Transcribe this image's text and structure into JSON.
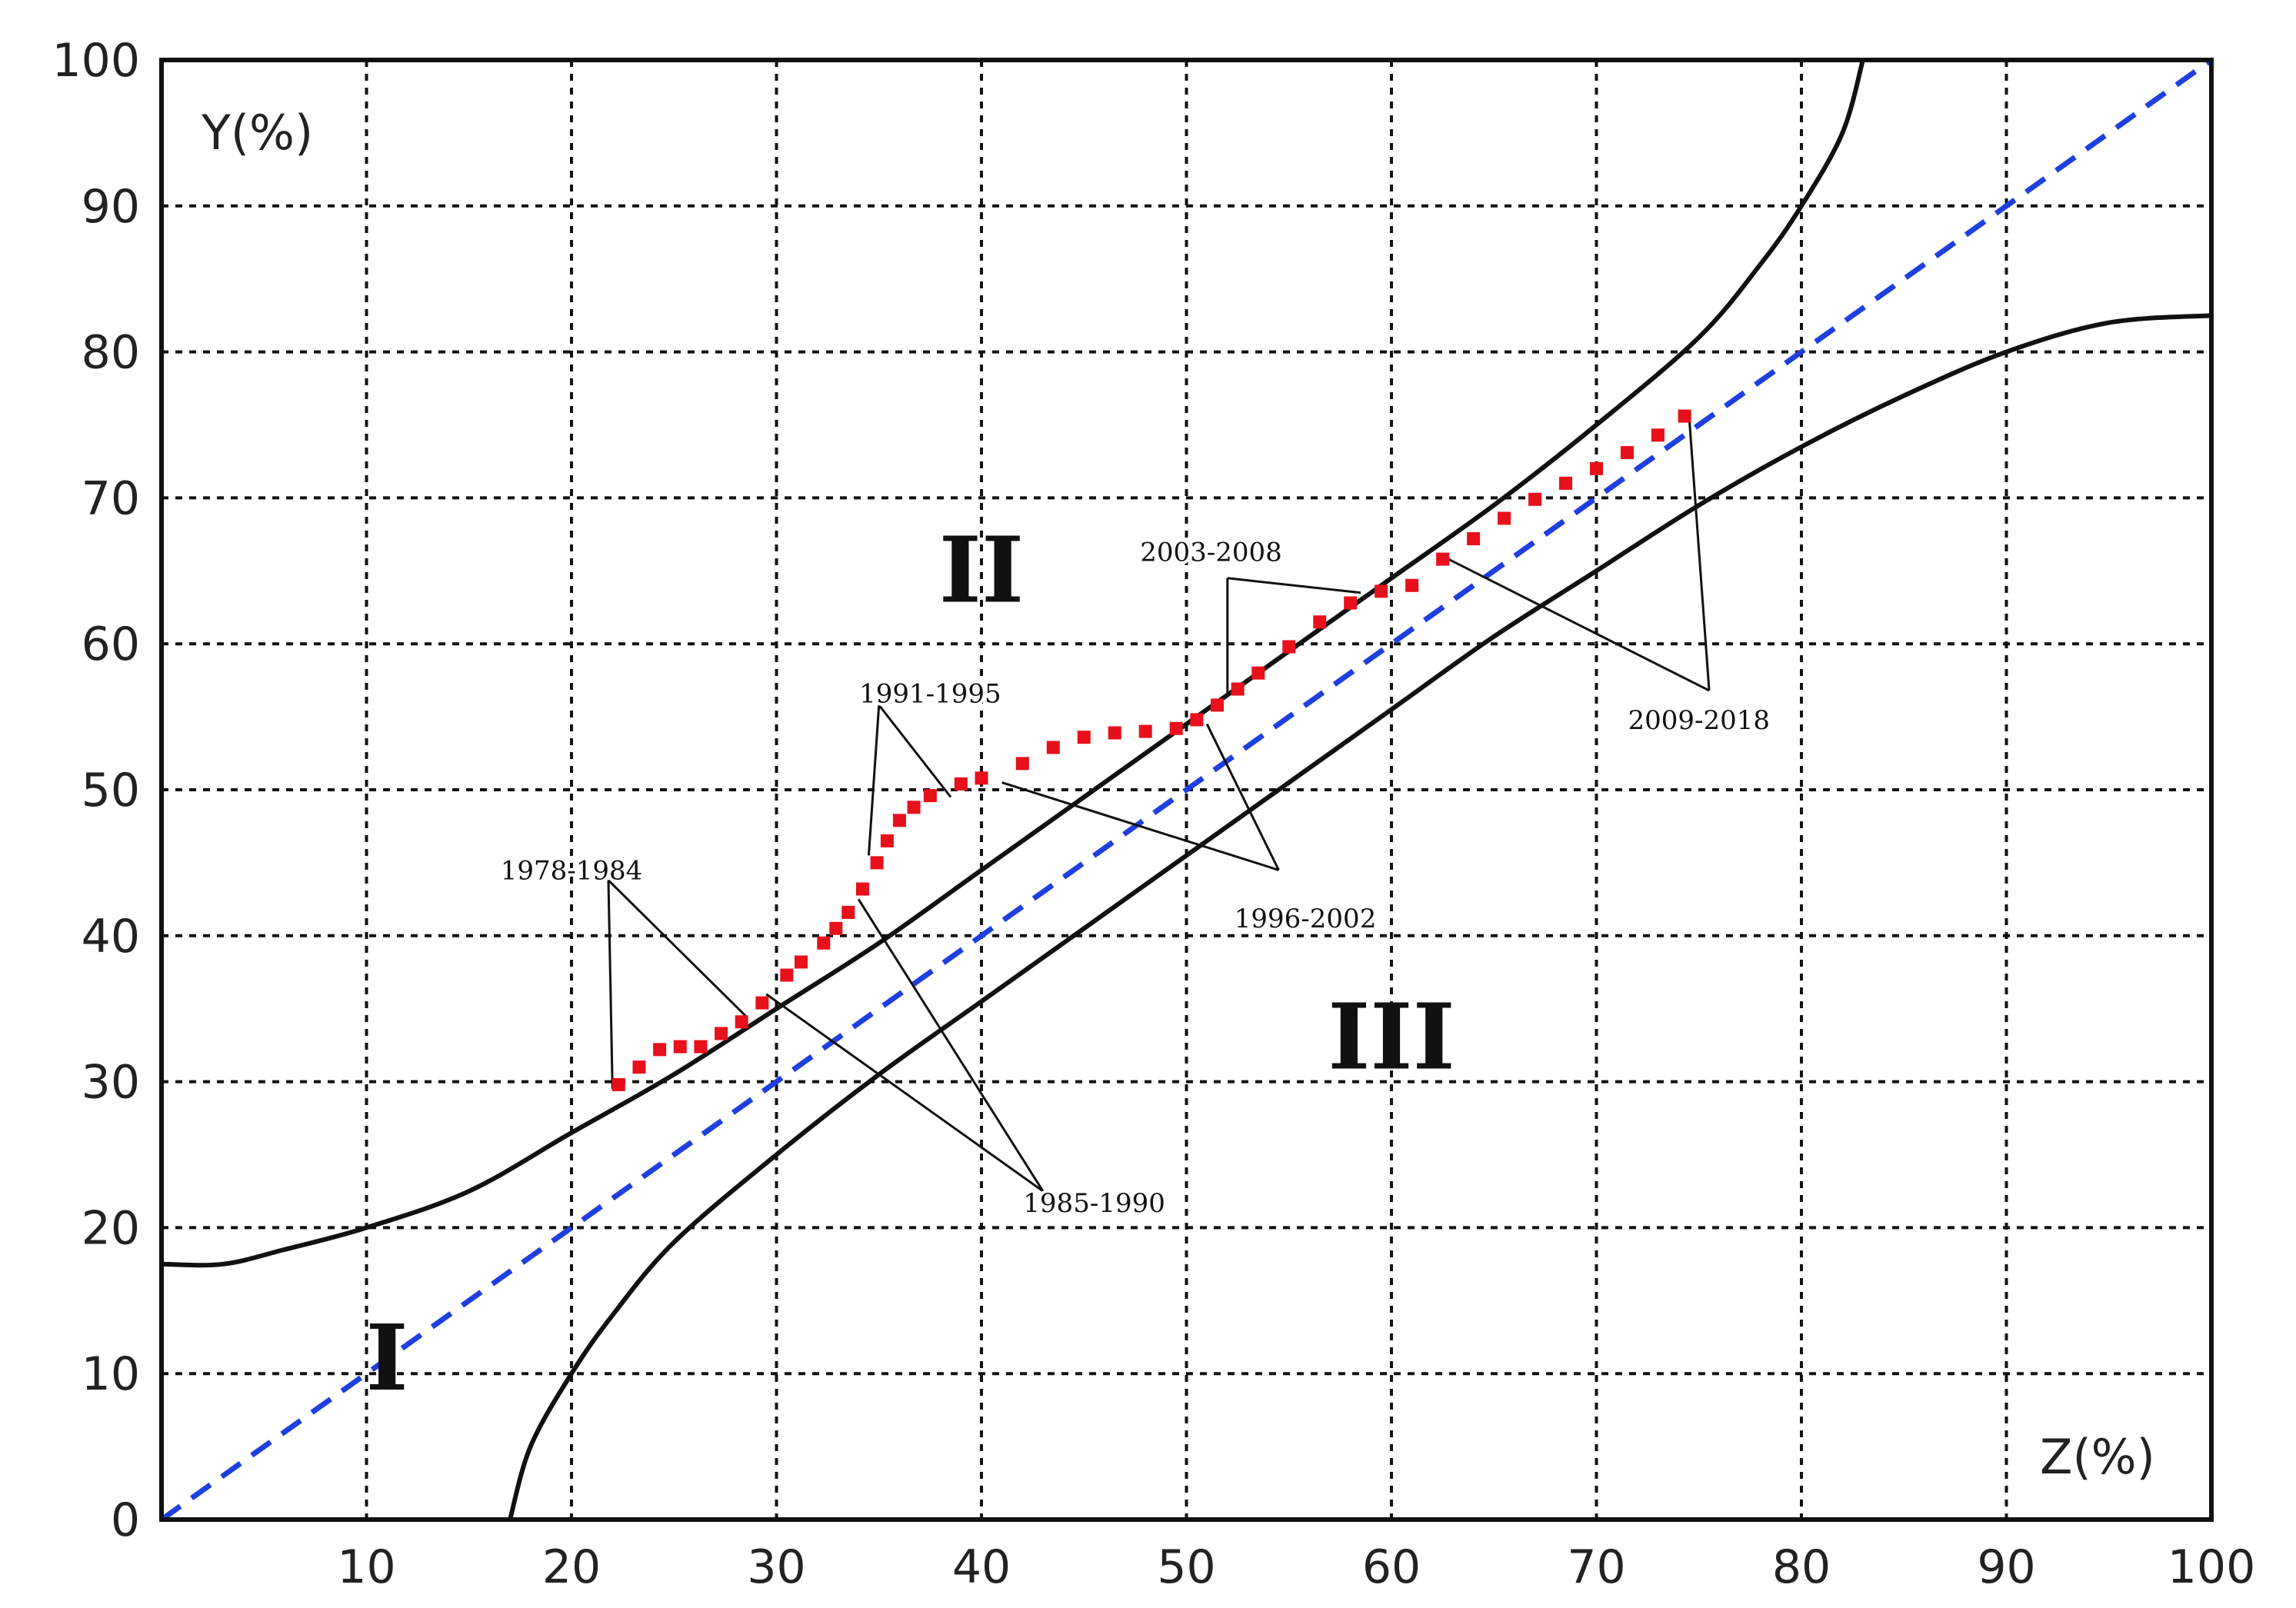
{
  "chart_data": {
    "type": "scatter",
    "xlabel": "Z(%)",
    "ylabel": "Y(%)",
    "xlim": [
      0,
      100
    ],
    "ylim": [
      0,
      100
    ],
    "xticks": [
      "0",
      "10",
      "20",
      "30",
      "40",
      "50",
      "60",
      "70",
      "80",
      "90",
      "100"
    ],
    "yticks": [
      "0",
      "10",
      "20",
      "30",
      "40",
      "50",
      "60",
      "70",
      "80",
      "90",
      "100"
    ],
    "grid": true,
    "diagonal_color": "#1f3fe0",
    "point_color": "#e8101a",
    "regions": [
      {
        "label": "I",
        "x": 11,
        "y": 11
      },
      {
        "label": "II",
        "x": 40,
        "y": 65
      },
      {
        "label": "III",
        "x": 60,
        "y": 33
      }
    ],
    "upper_boundary": [
      [
        0,
        17.5
      ],
      [
        3,
        17.5
      ],
      [
        6,
        18.5
      ],
      [
        10,
        20
      ],
      [
        15,
        22.5
      ],
      [
        20,
        26.5
      ],
      [
        25,
        30.5
      ],
      [
        30,
        35
      ],
      [
        35,
        39.5
      ],
      [
        40,
        44.5
      ],
      [
        45,
        49.5
      ],
      [
        50,
        54.5
      ],
      [
        55,
        59.5
      ],
      [
        60,
        64.5
      ],
      [
        65,
        69.5
      ],
      [
        70,
        75
      ],
      [
        75,
        81
      ],
      [
        78,
        86
      ],
      [
        80,
        90
      ],
      [
        82,
        95
      ],
      [
        83,
        100
      ]
    ],
    "lower_boundary": [
      [
        17,
        0
      ],
      [
        18,
        5
      ],
      [
        20,
        10
      ],
      [
        22,
        14
      ],
      [
        25,
        19
      ],
      [
        30,
        25
      ],
      [
        35,
        30.5
      ],
      [
        40,
        35.5
      ],
      [
        45,
        40.5
      ],
      [
        50,
        45.5
      ],
      [
        55,
        50.5
      ],
      [
        60,
        55.5
      ],
      [
        65,
        60.5
      ],
      [
        70,
        65
      ],
      [
        75,
        69.5
      ],
      [
        80,
        73.5
      ],
      [
        85,
        77
      ],
      [
        90,
        80
      ],
      [
        95,
        82
      ],
      [
        100,
        82.5
      ]
    ],
    "series": [
      {
        "values": [
          [
            22.3,
            29.8
          ],
          [
            23.3,
            31.0
          ],
          [
            24.3,
            32.2
          ],
          [
            25.3,
            32.4
          ],
          [
            26.3,
            32.4
          ],
          [
            27.3,
            33.3
          ],
          [
            28.3,
            34.1
          ],
          [
            29.3,
            35.4
          ],
          [
            30.5,
            37.3
          ],
          [
            31.2,
            38.2
          ],
          [
            32.3,
            39.5
          ],
          [
            32.9,
            40.5
          ],
          [
            33.5,
            41.6
          ],
          [
            34.2,
            43.2
          ],
          [
            34.9,
            45.0
          ],
          [
            35.4,
            46.5
          ],
          [
            36.0,
            47.9
          ],
          [
            36.7,
            48.8
          ],
          [
            37.5,
            49.6
          ],
          [
            39.0,
            50.4
          ],
          [
            40.0,
            50.8
          ],
          [
            42.0,
            51.8
          ],
          [
            43.5,
            52.9
          ],
          [
            45.0,
            53.6
          ],
          [
            46.5,
            53.9
          ],
          [
            48.0,
            54.0
          ],
          [
            49.5,
            54.2
          ],
          [
            50.5,
            54.8
          ],
          [
            51.5,
            55.8
          ],
          [
            52.5,
            56.9
          ],
          [
            53.5,
            58.0
          ],
          [
            55.0,
            59.8
          ],
          [
            56.5,
            61.5
          ],
          [
            58.0,
            62.8
          ],
          [
            59.5,
            63.6
          ],
          [
            61.0,
            64.0
          ],
          [
            62.5,
            65.8
          ],
          [
            64.0,
            67.2
          ],
          [
            65.5,
            68.6
          ],
          [
            67.0,
            69.9
          ],
          [
            68.5,
            71.0
          ],
          [
            70.0,
            72.0
          ],
          [
            71.5,
            73.1
          ],
          [
            73.0,
            74.3
          ],
          [
            74.3,
            75.6
          ]
        ]
      }
    ],
    "annotations": [
      {
        "text": "1978-1984",
        "label_x": 20.0,
        "label_y": 44.5,
        "targets": [
          [
            22.0,
            29.5
          ],
          [
            28.5,
            34.5
          ]
        ],
        "anchor": [
          21.8,
          43.8
        ]
      },
      {
        "text": "1985-1990",
        "label_x": 45.5,
        "label_y": 21.7,
        "targets": [
          [
            29.5,
            36.0
          ],
          [
            34.0,
            42.5
          ]
        ],
        "anchor": [
          43.0,
          22.5
        ]
      },
      {
        "text": "1991-1995",
        "label_x": 37.5,
        "label_y": 56.6,
        "targets": [
          [
            34.5,
            45.5
          ],
          [
            38.5,
            49.5
          ]
        ],
        "anchor": [
          35.0,
          55.8
        ]
      },
      {
        "text": "1996-2002",
        "label_x": 55.8,
        "label_y": 41.2,
        "targets": [
          [
            41.0,
            50.5
          ],
          [
            51.0,
            54.5
          ]
        ],
        "anchor": [
          54.5,
          44.5
        ]
      },
      {
        "text": "2003-2008",
        "label_x": 51.2,
        "label_y": 66.3,
        "targets": [
          [
            52.0,
            56.5
          ],
          [
            58.5,
            63.5
          ]
        ],
        "anchor": [
          52.0,
          64.5
        ]
      },
      {
        "text": "2009-2018",
        "label_x": 75.0,
        "label_y": 54.8,
        "targets": [
          [
            62.5,
            66.0
          ],
          [
            74.5,
            76.0
          ]
        ],
        "anchor": [
          75.5,
          56.8
        ]
      }
    ]
  }
}
